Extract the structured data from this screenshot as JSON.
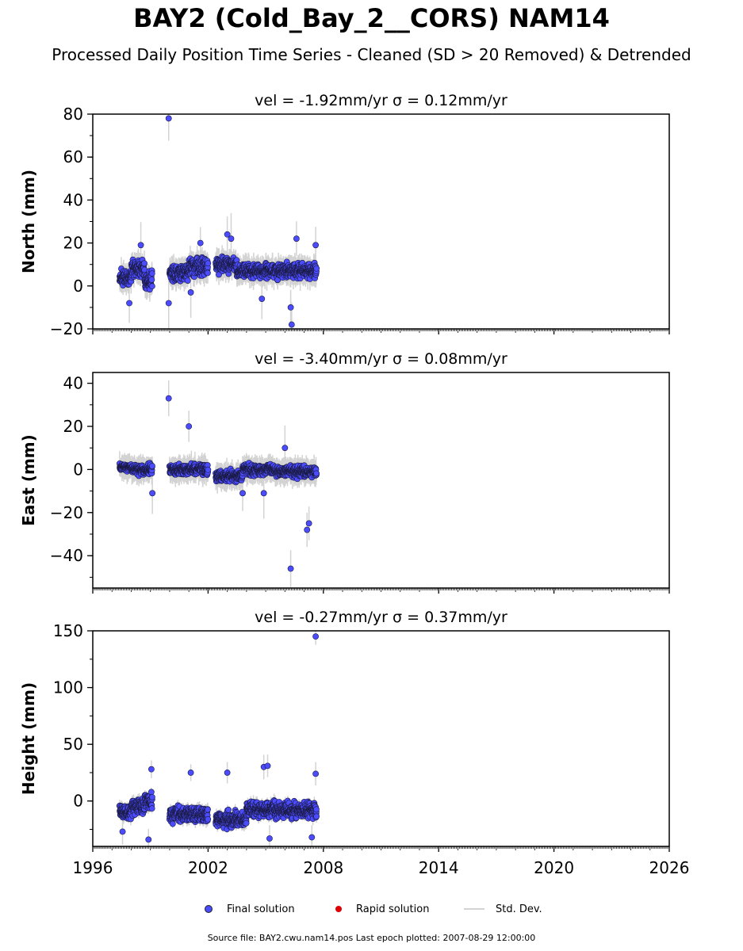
{
  "title": "BAY2 (Cold_Bay_2__CORS) NAM14",
  "subtitle": "Processed Daily Position Time Series - Cleaned (SD > 20 Removed) & Detrended",
  "footer": "Source file: BAY2.cwu.nam14.pos  Last epoch plotted: 2007-08-29 12:00:00",
  "legend": {
    "final": "Final solution",
    "rapid": "Rapid solution",
    "std": "Std. Dev."
  },
  "colors": {
    "final": "#4b4bff",
    "rapid": "#dd0000",
    "std": "#d3d3d3"
  },
  "chart_data": [
    {
      "type": "scatter",
      "title": "vel = -1.92mm/yr   σ = 0.12mm/yr",
      "ylabel": "North (mm)",
      "xlim": [
        1996,
        2026
      ],
      "ylim": [
        -20,
        80
      ],
      "yticks": [
        -20,
        0,
        20,
        40,
        60,
        80
      ],
      "xticks": [
        1996,
        2002,
        2008,
        2014,
        2020,
        2026
      ],
      "segments": [
        {
          "x": [
            1997.4,
            1998.0
          ],
          "center": 4,
          "spread": 4
        },
        {
          "x": [
            1998.0,
            1998.7
          ],
          "center": 8,
          "spread": 5
        },
        {
          "x": [
            1998.7,
            1999.1
          ],
          "center": 3,
          "spread": 6
        },
        {
          "x": [
            2000.0,
            2001.0
          ],
          "center": 6,
          "spread": 5
        },
        {
          "x": [
            2001.0,
            2002.0
          ],
          "center": 9,
          "spread": 5
        },
        {
          "x": [
            2002.4,
            2003.5
          ],
          "center": 10,
          "spread": 4
        },
        {
          "x": [
            2003.5,
            2005.5
          ],
          "center": 7,
          "spread": 4
        },
        {
          "x": [
            2005.5,
            2007.65
          ],
          "center": 7,
          "spread": 4
        }
      ],
      "outliers": [
        {
          "x": 1999.95,
          "y": 78
        },
        {
          "x": 2006.3,
          "y": -10
        },
        {
          "x": 2006.35,
          "y": -18
        },
        {
          "x": 2006.6,
          "y": 22
        },
        {
          "x": 2007.6,
          "y": 19
        },
        {
          "x": 2003.0,
          "y": 24
        },
        {
          "x": 2003.2,
          "y": 22
        },
        {
          "x": 2001.6,
          "y": 20
        },
        {
          "x": 1998.5,
          "y": 19
        },
        {
          "x": 1997.9,
          "y": -8
        },
        {
          "x": 1999.95,
          "y": -8
        },
        {
          "x": 2004.8,
          "y": -6
        },
        {
          "x": 2001.1,
          "y": -3
        }
      ]
    },
    {
      "type": "scatter",
      "title": "vel = -3.40mm/yr   σ = 0.08mm/yr",
      "ylabel": "East (mm)",
      "xlim": [
        1996,
        2026
      ],
      "ylim": [
        -55,
        45
      ],
      "yticks": [
        -40,
        -20,
        0,
        20,
        40
      ],
      "xticks": [
        1996,
        2002,
        2008,
        2014,
        2020,
        2026
      ],
      "segments": [
        {
          "x": [
            1997.4,
            1998.0
          ],
          "center": 1,
          "spread": 2
        },
        {
          "x": [
            1998.0,
            1999.1
          ],
          "center": 0,
          "spread": 3
        },
        {
          "x": [
            2000.0,
            2002.0
          ],
          "center": 0,
          "spread": 3
        },
        {
          "x": [
            2002.4,
            2003.8
          ],
          "center": -3,
          "spread": 3
        },
        {
          "x": [
            2003.8,
            2005.5
          ],
          "center": 0,
          "spread": 3
        },
        {
          "x": [
            2005.5,
            2007.65
          ],
          "center": -1,
          "spread": 3
        }
      ],
      "outliers": [
        {
          "x": 1999.95,
          "y": 33
        },
        {
          "x": 2001.0,
          "y": 20
        },
        {
          "x": 2006.3,
          "y": -46
        },
        {
          "x": 2007.15,
          "y": -28
        },
        {
          "x": 2007.25,
          "y": -25
        },
        {
          "x": 1999.1,
          "y": -11
        },
        {
          "x": 2006.0,
          "y": 10
        },
        {
          "x": 2004.9,
          "y": -11
        },
        {
          "x": 2003.8,
          "y": -11
        }
      ]
    },
    {
      "type": "scatter",
      "title": "vel = -0.27mm/yr   σ = 0.37mm/yr",
      "ylabel": "Height (mm)",
      "xlim": [
        1996,
        2026
      ],
      "ylim": [
        -40,
        150
      ],
      "yticks": [
        0,
        50,
        100,
        150
      ],
      "xticks": [
        1996,
        2002,
        2008,
        2014,
        2020,
        2026
      ],
      "xticklabels": [
        "1996",
        "2002",
        "2008",
        "2014",
        "2020",
        "2026"
      ],
      "segments": [
        {
          "x": [
            1997.4,
            1998.0
          ],
          "center": -10,
          "spread": 8
        },
        {
          "x": [
            1998.0,
            1998.7
          ],
          "center": -5,
          "spread": 9
        },
        {
          "x": [
            1998.7,
            1999.1
          ],
          "center": 0,
          "spread": 10
        },
        {
          "x": [
            2000.0,
            2002.0
          ],
          "center": -12,
          "spread": 8
        },
        {
          "x": [
            2002.4,
            2004.0
          ],
          "center": -16,
          "spread": 8
        },
        {
          "x": [
            2004.0,
            2005.7
          ],
          "center": -8,
          "spread": 9
        },
        {
          "x": [
            2005.7,
            2007.65
          ],
          "center": -8,
          "spread": 8
        }
      ],
      "outliers": [
        {
          "x": 2007.6,
          "y": 145
        },
        {
          "x": 2003.0,
          "y": 25
        },
        {
          "x": 2004.9,
          "y": 30
        },
        {
          "x": 2005.1,
          "y": 31
        },
        {
          "x": 2007.6,
          "y": 24
        },
        {
          "x": 1999.05,
          "y": 28
        },
        {
          "x": 2001.1,
          "y": 25
        },
        {
          "x": 1997.55,
          "y": -27
        },
        {
          "x": 1998.9,
          "y": -34
        },
        {
          "x": 2005.2,
          "y": -33
        },
        {
          "x": 2007.4,
          "y": -32
        }
      ]
    }
  ]
}
